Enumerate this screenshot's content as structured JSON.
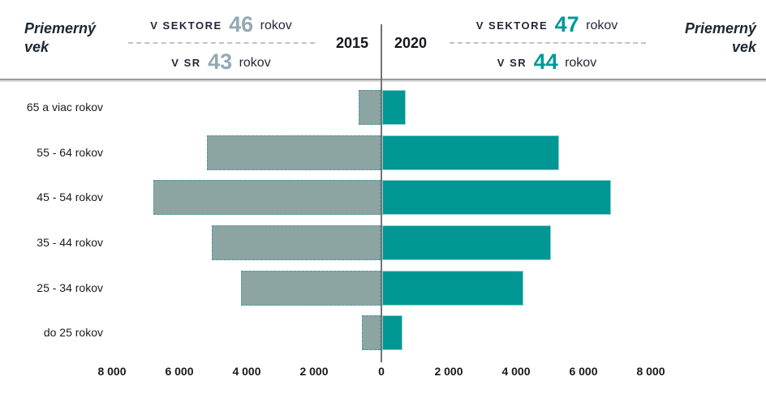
{
  "header": {
    "left_title_line1": "Priemerný",
    "left_title_line2": "vek",
    "right_title_line1": "Priemerný",
    "right_title_line2": "vek",
    "year_left": "2015",
    "year_right": "2020",
    "left_stats": {
      "sector_label": "V SEKTORE",
      "sector_value": "46",
      "sector_unit": "rokov",
      "sr_label": "V SR",
      "sr_value": "43",
      "sr_unit": "rokov"
    },
    "right_stats": {
      "sector_label": "V SEKTORE",
      "sector_value": "47",
      "sector_unit": "rokov",
      "sr_label": "V SR",
      "sr_value": "44",
      "sr_unit": "rokov"
    }
  },
  "chart_data": {
    "type": "bar",
    "subtype": "population-pyramid",
    "categories": [
      "65 a viac rokov",
      "55 - 64 rokov",
      "45 - 54 rokov",
      "35 - 44 rokov",
      "25 - 34 rokov",
      "do 25 rokov"
    ],
    "series": [
      {
        "name": "2015",
        "side": "left",
        "color": "#8ca4a2",
        "values": [
          650,
          5150,
          6750,
          5000,
          4150,
          550
        ]
      },
      {
        "name": "2020",
        "side": "right",
        "color": "#009694",
        "values": [
          700,
          5250,
          6800,
          5000,
          4200,
          600
        ]
      }
    ],
    "x_axis_ticks": [
      "8 000",
      "6 000",
      "4 000",
      "2 000",
      "0",
      "2 000",
      "4 000",
      "6 000",
      "8 000"
    ],
    "xlim": [
      -8000,
      8000
    ],
    "grid": false,
    "legend_position": "top-center-years",
    "average_age": {
      "sector_2015": 46,
      "sr_2015": 43,
      "sector_2020": 47,
      "sr_2020": 44
    }
  },
  "colors": {
    "bar_2015": "#8ca4a2",
    "bar_2020": "#009694",
    "axis_line": "#737373",
    "value_gray": "#93a9b4",
    "value_teal": "#009997",
    "text_dark": "#26263a"
  }
}
